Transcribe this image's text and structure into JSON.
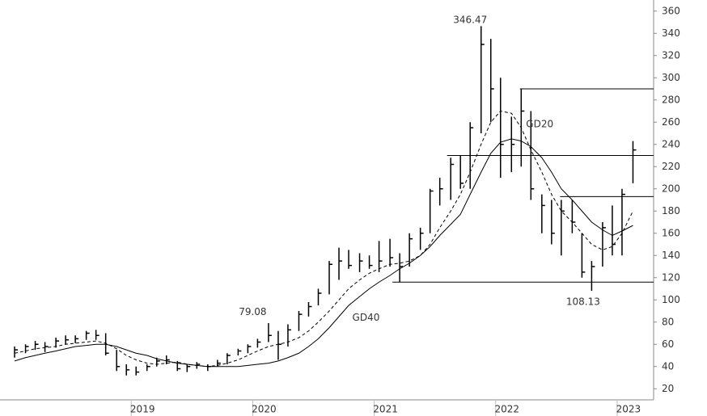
{
  "chart_data": {
    "type": "ohlc",
    "color": "#000000",
    "x": [
      2018.04,
      2018.13,
      2018.21,
      2018.29,
      2018.38,
      2018.46,
      2018.54,
      2018.63,
      2018.71,
      2018.79,
      2018.88,
      2018.96,
      2019.04,
      2019.13,
      2019.21,
      2019.29,
      2019.38,
      2019.46,
      2019.54,
      2019.63,
      2019.71,
      2019.79,
      2019.88,
      2019.96,
      2020.04,
      2020.13,
      2020.21,
      2020.29,
      2020.38,
      2020.46,
      2020.54,
      2020.63,
      2020.71,
      2020.79,
      2020.88,
      2020.96,
      2021.04,
      2021.13,
      2021.21,
      2021.29,
      2021.38,
      2021.46,
      2021.54,
      2021.63,
      2021.71,
      2021.79,
      2021.88,
      2021.96,
      2022.04,
      2022.13,
      2022.21,
      2022.29,
      2022.38,
      2022.46,
      2022.54,
      2022.63,
      2022.71,
      2022.79,
      2022.88,
      2022.96,
      2023.04,
      2023.13
    ],
    "high": [
      58,
      60,
      63,
      62,
      66,
      68,
      68,
      72,
      73,
      70,
      55,
      42,
      40,
      42,
      48,
      50,
      45,
      42,
      44,
      42,
      46,
      52,
      56,
      60,
      65,
      79.08,
      72,
      78,
      90,
      98,
      110,
      135,
      147,
      145,
      142,
      140,
      153,
      155,
      142,
      160,
      165,
      200,
      210,
      228,
      230,
      260,
      346.47,
      335,
      300,
      265,
      290,
      270,
      195,
      190,
      190,
      190,
      160,
      135,
      170,
      185,
      200,
      243
    ],
    "low": [
      48,
      52,
      55,
      53,
      57,
      60,
      61,
      64,
      64,
      50,
      36,
      32,
      32,
      36,
      40,
      42,
      36,
      35,
      38,
      36,
      40,
      42,
      50,
      52,
      57,
      62,
      46,
      58,
      72,
      85,
      95,
      105,
      118,
      128,
      125,
      128,
      125,
      130,
      116,
      130,
      145,
      160,
      185,
      190,
      200,
      200,
      250,
      260,
      210,
      215,
      220,
      190,
      160,
      150,
      140,
      160,
      120,
      108.13,
      130,
      140,
      140,
      205
    ],
    "close": [
      55,
      58,
      60,
      58,
      63,
      64,
      65,
      70,
      68,
      52,
      40,
      37,
      35,
      40,
      45,
      46,
      38,
      40,
      42,
      40,
      43,
      50,
      54,
      58,
      62,
      68,
      60,
      73,
      87,
      94,
      106,
      132,
      135,
      131,
      135,
      131,
      135,
      138,
      130,
      155,
      160,
      198,
      200,
      222,
      205,
      255,
      330,
      290,
      240,
      240,
      270,
      200,
      185,
      160,
      180,
      170,
      125,
      130,
      165,
      150,
      195,
      235
    ],
    "lines": [
      {
        "name": "GD20",
        "dashed": true,
        "label_at": [
          2022.25,
          258
        ],
        "values": [
          52,
          54,
          56,
          57,
          58,
          60,
          61,
          62,
          63,
          61,
          56,
          50,
          46,
          43,
          42,
          43,
          44,
          42,
          41,
          40,
          41,
          43,
          46,
          50,
          54,
          58,
          60,
          62,
          66,
          72,
          80,
          90,
          100,
          110,
          118,
          124,
          128,
          132,
          133,
          135,
          140,
          150,
          165,
          180,
          195,
          215,
          240,
          260,
          270,
          268,
          255,
          235,
          215,
          195,
          180,
          170,
          160,
          150,
          145,
          148,
          160,
          180
        ]
      },
      {
        "name": "GD40",
        "dashed": false,
        "label_at": [
          2020.82,
          84
        ],
        "values": [
          45,
          48,
          50,
          52,
          54,
          56,
          58,
          59,
          60,
          60,
          58,
          55,
          52,
          50,
          47,
          45,
          43,
          42,
          41,
          40,
          40,
          40,
          40,
          41,
          42,
          43,
          45,
          48,
          52,
          58,
          65,
          75,
          85,
          95,
          103,
          110,
          116,
          122,
          128,
          133,
          140,
          148,
          158,
          168,
          177,
          195,
          215,
          232,
          242,
          245,
          243,
          238,
          228,
          215,
          200,
          190,
          180,
          170,
          163,
          158,
          162,
          167
        ]
      }
    ],
    "levels": [
      {
        "value": 290,
        "start": 2022.2
      },
      {
        "value": 230,
        "start": 2021.6
      },
      {
        "value": 193,
        "start": 2022.53
      },
      {
        "value": 116,
        "start": 2021.15
      }
    ],
    "annotations": [
      {
        "text": "346.47",
        "x": 2021.79,
        "y": 352
      },
      {
        "text": "79.08",
        "x": 2020.0,
        "y": 89
      },
      {
        "text": "108.13",
        "x": 2022.72,
        "y": 98
      }
    ],
    "xlim": [
      2017.92,
      2023.3
    ],
    "xticks": [
      2019,
      2020,
      2021,
      2022,
      2023
    ],
    "ylim": [
      10,
      370
    ],
    "yticks": [
      20,
      40,
      60,
      80,
      100,
      120,
      140,
      160,
      180,
      200,
      220,
      240,
      260,
      280,
      300,
      320,
      340,
      360
    ]
  }
}
